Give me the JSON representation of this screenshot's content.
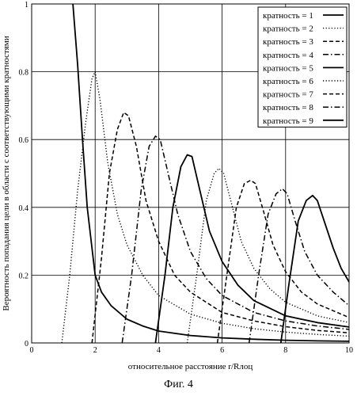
{
  "caption": "Фиг. 4",
  "chart_data": {
    "type": "line",
    "xlabel": "относительное расстояние r/Rлоц",
    "ylabel": "Вероятность попадания цели в области с соответствующими кратностями",
    "xlim": [
      0,
      10
    ],
    "ylim": [
      0,
      1
    ],
    "x_ticks": [
      0,
      2,
      4,
      6,
      8,
      10
    ],
    "y_ticks": [
      0,
      0.2,
      0.4,
      0.6,
      0.8,
      1
    ],
    "x_tick_labels": [
      "0",
      "2",
      "4",
      "6",
      "8",
      "10"
    ],
    "y_tick_labels": [
      "0",
      "0.2",
      "0.4",
      "0.6",
      "0.8",
      "1"
    ],
    "grid": true,
    "legend_position": "top-right",
    "series": [
      {
        "name": "кратность = 1",
        "style": "solid",
        "width": 1.8,
        "points": [
          [
            1.3,
            1.0
          ],
          [
            1.45,
            0.82
          ],
          [
            1.6,
            0.6
          ],
          [
            1.75,
            0.4
          ],
          [
            1.9,
            0.28
          ],
          [
            2.0,
            0.2
          ],
          [
            2.2,
            0.15
          ],
          [
            2.5,
            0.11
          ],
          [
            3.0,
            0.07
          ],
          [
            3.5,
            0.05
          ],
          [
            4.0,
            0.035
          ],
          [
            5.0,
            0.022
          ],
          [
            6.0,
            0.015
          ],
          [
            7.0,
            0.011
          ],
          [
            8.0,
            0.008
          ],
          [
            9.0,
            0.006
          ],
          [
            10.0,
            0.005
          ]
        ]
      },
      {
        "name": "кратность = 2",
        "style": "dotted",
        "width": 1.4,
        "points": [
          [
            0.95,
            0.0
          ],
          [
            1.2,
            0.2
          ],
          [
            1.45,
            0.45
          ],
          [
            1.7,
            0.65
          ],
          [
            1.9,
            0.78
          ],
          [
            2.0,
            0.8
          ],
          [
            2.15,
            0.72
          ],
          [
            2.4,
            0.53
          ],
          [
            2.7,
            0.38
          ],
          [
            3.0,
            0.29
          ],
          [
            3.5,
            0.2
          ],
          [
            4.0,
            0.14
          ],
          [
            5.0,
            0.085
          ],
          [
            6.0,
            0.058
          ],
          [
            7.0,
            0.042
          ],
          [
            8.0,
            0.032
          ],
          [
            9.0,
            0.025
          ],
          [
            10.0,
            0.02
          ]
        ]
      },
      {
        "name": "кратность = 3",
        "style": "dashed",
        "width": 1.5,
        "points": [
          [
            1.9,
            0.0
          ],
          [
            2.2,
            0.25
          ],
          [
            2.45,
            0.5
          ],
          [
            2.7,
            0.63
          ],
          [
            2.9,
            0.68
          ],
          [
            3.05,
            0.67
          ],
          [
            3.3,
            0.58
          ],
          [
            3.6,
            0.42
          ],
          [
            4.0,
            0.3
          ],
          [
            4.5,
            0.2
          ],
          [
            5.0,
            0.15
          ],
          [
            6.0,
            0.09
          ],
          [
            7.0,
            0.065
          ],
          [
            8.0,
            0.048
          ],
          [
            9.0,
            0.037
          ],
          [
            10.0,
            0.03
          ]
        ]
      },
      {
        "name": "кратность = 4",
        "style": "dashdot",
        "width": 1.5,
        "points": [
          [
            2.85,
            0.0
          ],
          [
            3.15,
            0.2
          ],
          [
            3.45,
            0.45
          ],
          [
            3.7,
            0.58
          ],
          [
            3.9,
            0.61
          ],
          [
            4.05,
            0.6
          ],
          [
            4.3,
            0.5
          ],
          [
            4.6,
            0.38
          ],
          [
            5.0,
            0.27
          ],
          [
            5.5,
            0.19
          ],
          [
            6.0,
            0.14
          ],
          [
            7.0,
            0.09
          ],
          [
            8.0,
            0.065
          ],
          [
            9.0,
            0.05
          ],
          [
            10.0,
            0.04
          ]
        ]
      },
      {
        "name": "кратность = 5",
        "style": "solid",
        "width": 1.8,
        "points": [
          [
            3.9,
            0.0
          ],
          [
            4.2,
            0.2
          ],
          [
            4.45,
            0.4
          ],
          [
            4.7,
            0.52
          ],
          [
            4.9,
            0.555
          ],
          [
            5.05,
            0.55
          ],
          [
            5.3,
            0.45
          ],
          [
            5.6,
            0.33
          ],
          [
            6.0,
            0.24
          ],
          [
            6.5,
            0.17
          ],
          [
            7.0,
            0.125
          ],
          [
            8.0,
            0.08
          ],
          [
            9.0,
            0.06
          ],
          [
            10.0,
            0.047
          ]
        ]
      },
      {
        "name": "кратность = 6",
        "style": "dotted",
        "width": 1.4,
        "points": [
          [
            4.9,
            0.0
          ],
          [
            5.2,
            0.2
          ],
          [
            5.5,
            0.42
          ],
          [
            5.75,
            0.5
          ],
          [
            5.9,
            0.515
          ],
          [
            6.05,
            0.5
          ],
          [
            6.3,
            0.41
          ],
          [
            6.6,
            0.3
          ],
          [
            7.0,
            0.22
          ],
          [
            7.5,
            0.16
          ],
          [
            8.0,
            0.12
          ],
          [
            9.0,
            0.08
          ],
          [
            10.0,
            0.06
          ]
        ]
      },
      {
        "name": "кратность = 7",
        "style": "dashed",
        "width": 1.5,
        "points": [
          [
            5.85,
            0.0
          ],
          [
            6.15,
            0.2
          ],
          [
            6.45,
            0.4
          ],
          [
            6.7,
            0.47
          ],
          [
            6.9,
            0.48
          ],
          [
            7.05,
            0.47
          ],
          [
            7.3,
            0.39
          ],
          [
            7.6,
            0.29
          ],
          [
            8.0,
            0.21
          ],
          [
            8.5,
            0.15
          ],
          [
            9.0,
            0.115
          ],
          [
            10.0,
            0.075
          ]
        ]
      },
      {
        "name": "кратность = 8",
        "style": "dashdot",
        "width": 1.5,
        "points": [
          [
            6.85,
            0.0
          ],
          [
            7.15,
            0.2
          ],
          [
            7.45,
            0.38
          ],
          [
            7.7,
            0.44
          ],
          [
            7.9,
            0.455
          ],
          [
            8.05,
            0.44
          ],
          [
            8.3,
            0.36
          ],
          [
            8.6,
            0.27
          ],
          [
            9.0,
            0.2
          ],
          [
            9.5,
            0.15
          ],
          [
            10.0,
            0.11
          ]
        ]
      },
      {
        "name": "кратность = 9",
        "style": "solid",
        "width": 1.8,
        "points": [
          [
            7.85,
            0.0
          ],
          [
            8.1,
            0.17
          ],
          [
            8.4,
            0.36
          ],
          [
            8.65,
            0.42
          ],
          [
            8.85,
            0.435
          ],
          [
            9.0,
            0.42
          ],
          [
            9.25,
            0.35
          ],
          [
            9.5,
            0.28
          ],
          [
            9.75,
            0.22
          ],
          [
            10.0,
            0.18
          ]
        ]
      }
    ]
  }
}
